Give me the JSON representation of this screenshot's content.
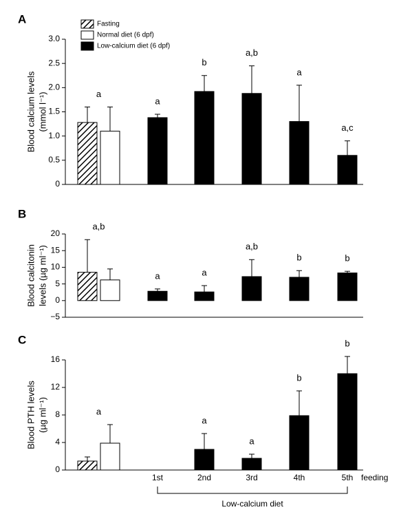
{
  "chart_data": [
    {
      "type": "bar",
      "panel": "A",
      "ylabel": [
        "Blood calcium levels",
        "(mmol l⁻¹)"
      ],
      "ylim": [
        0,
        3
      ],
      "yticks": [
        0,
        {
          "value": 0.5,
          "label": "0.5"
        },
        {
          "value": 1,
          "label": "1.0"
        },
        {
          "value": 1.5,
          "label": "1.5"
        },
        {
          "value": 2,
          "label": "2.0"
        },
        {
          "value": 2.5,
          "label": "2.5"
        },
        {
          "value": 3,
          "label": "3.0"
        }
      ],
      "series": [
        {
          "name": "Fasting",
          "style": "hatch",
          "values": [
            1.28,
            null,
            null,
            null,
            null,
            null,
            null
          ],
          "errors": [
            1.6,
            null,
            null,
            null,
            null,
            null,
            null
          ]
        },
        {
          "name": "Normal diet (6 dpf)",
          "style": "white",
          "values": [
            null,
            1.1,
            null,
            null,
            null,
            null,
            null
          ],
          "errors": [
            null,
            1.6,
            null,
            null,
            null,
            null,
            null
          ]
        },
        {
          "name": "Low-calcium diet (6 dpf)",
          "style": "black",
          "values": [
            null,
            null,
            1.38,
            1.92,
            1.88,
            1.3,
            0.6
          ],
          "errors": [
            null,
            null,
            1.45,
            2.25,
            2.45,
            2.05,
            0.9
          ]
        }
      ],
      "letters": [
        "a",
        null,
        "a",
        "b",
        "a,b",
        "a",
        "a,c"
      ]
    },
    {
      "type": "bar",
      "panel": "B",
      "ylabel": [
        "Blood calcitonin",
        "levels (µg ml⁻¹)"
      ],
      "ylim": [
        -5,
        20
      ],
      "yticks": [
        {
          "value": -5,
          "label": "−5"
        },
        0,
        5,
        10,
        15,
        20
      ],
      "series": [
        {
          "style": "hatch",
          "values": [
            8.5,
            null,
            null,
            null,
            null,
            null,
            null
          ],
          "errors": [
            18.3,
            null,
            null,
            null,
            null,
            null,
            null
          ]
        },
        {
          "style": "white",
          "values": [
            null,
            6.2,
            null,
            null,
            null,
            null,
            null
          ],
          "errors": [
            null,
            9.5,
            null,
            null,
            null,
            null,
            null
          ]
        },
        {
          "style": "black",
          "values": [
            null,
            null,
            2.8,
            2.6,
            7.2,
            7,
            8.3
          ],
          "errors": [
            null,
            null,
            3.5,
            4.5,
            12.3,
            9,
            8.8
          ]
        }
      ],
      "letters": [
        "a,b",
        null,
        "a",
        "a",
        "a,b",
        "b",
        "b"
      ]
    },
    {
      "type": "bar",
      "panel": "C",
      "ylabel": [
        "Blood PTH levels",
        "(µg ml⁻¹)"
      ],
      "ylim": [
        0,
        16
      ],
      "yticks": [
        0,
        4,
        8,
        12,
        16
      ],
      "categories": [
        null,
        null,
        "1st",
        "2nd",
        "3rd",
        "4th",
        "5th"
      ],
      "x_suffix": "feeding",
      "bracket_label": "Low-calcium diet",
      "series": [
        {
          "style": "hatch",
          "values": [
            1.3,
            null,
            null,
            null,
            null,
            null,
            null
          ],
          "errors": [
            1.9,
            null,
            null,
            null,
            null,
            null,
            null
          ]
        },
        {
          "style": "white",
          "values": [
            null,
            3.9,
            null,
            null,
            null,
            null,
            null
          ],
          "errors": [
            null,
            6.6,
            null,
            null,
            null,
            null,
            null
          ]
        },
        {
          "style": "black",
          "values": [
            null,
            null,
            null,
            3,
            1.7,
            7.9,
            14
          ],
          "errors": [
            null,
            null,
            null,
            5.3,
            2.3,
            11.5,
            16.5
          ]
        }
      ],
      "letters": [
        "a",
        null,
        null,
        "a",
        "a",
        "b",
        "b"
      ]
    }
  ]
}
